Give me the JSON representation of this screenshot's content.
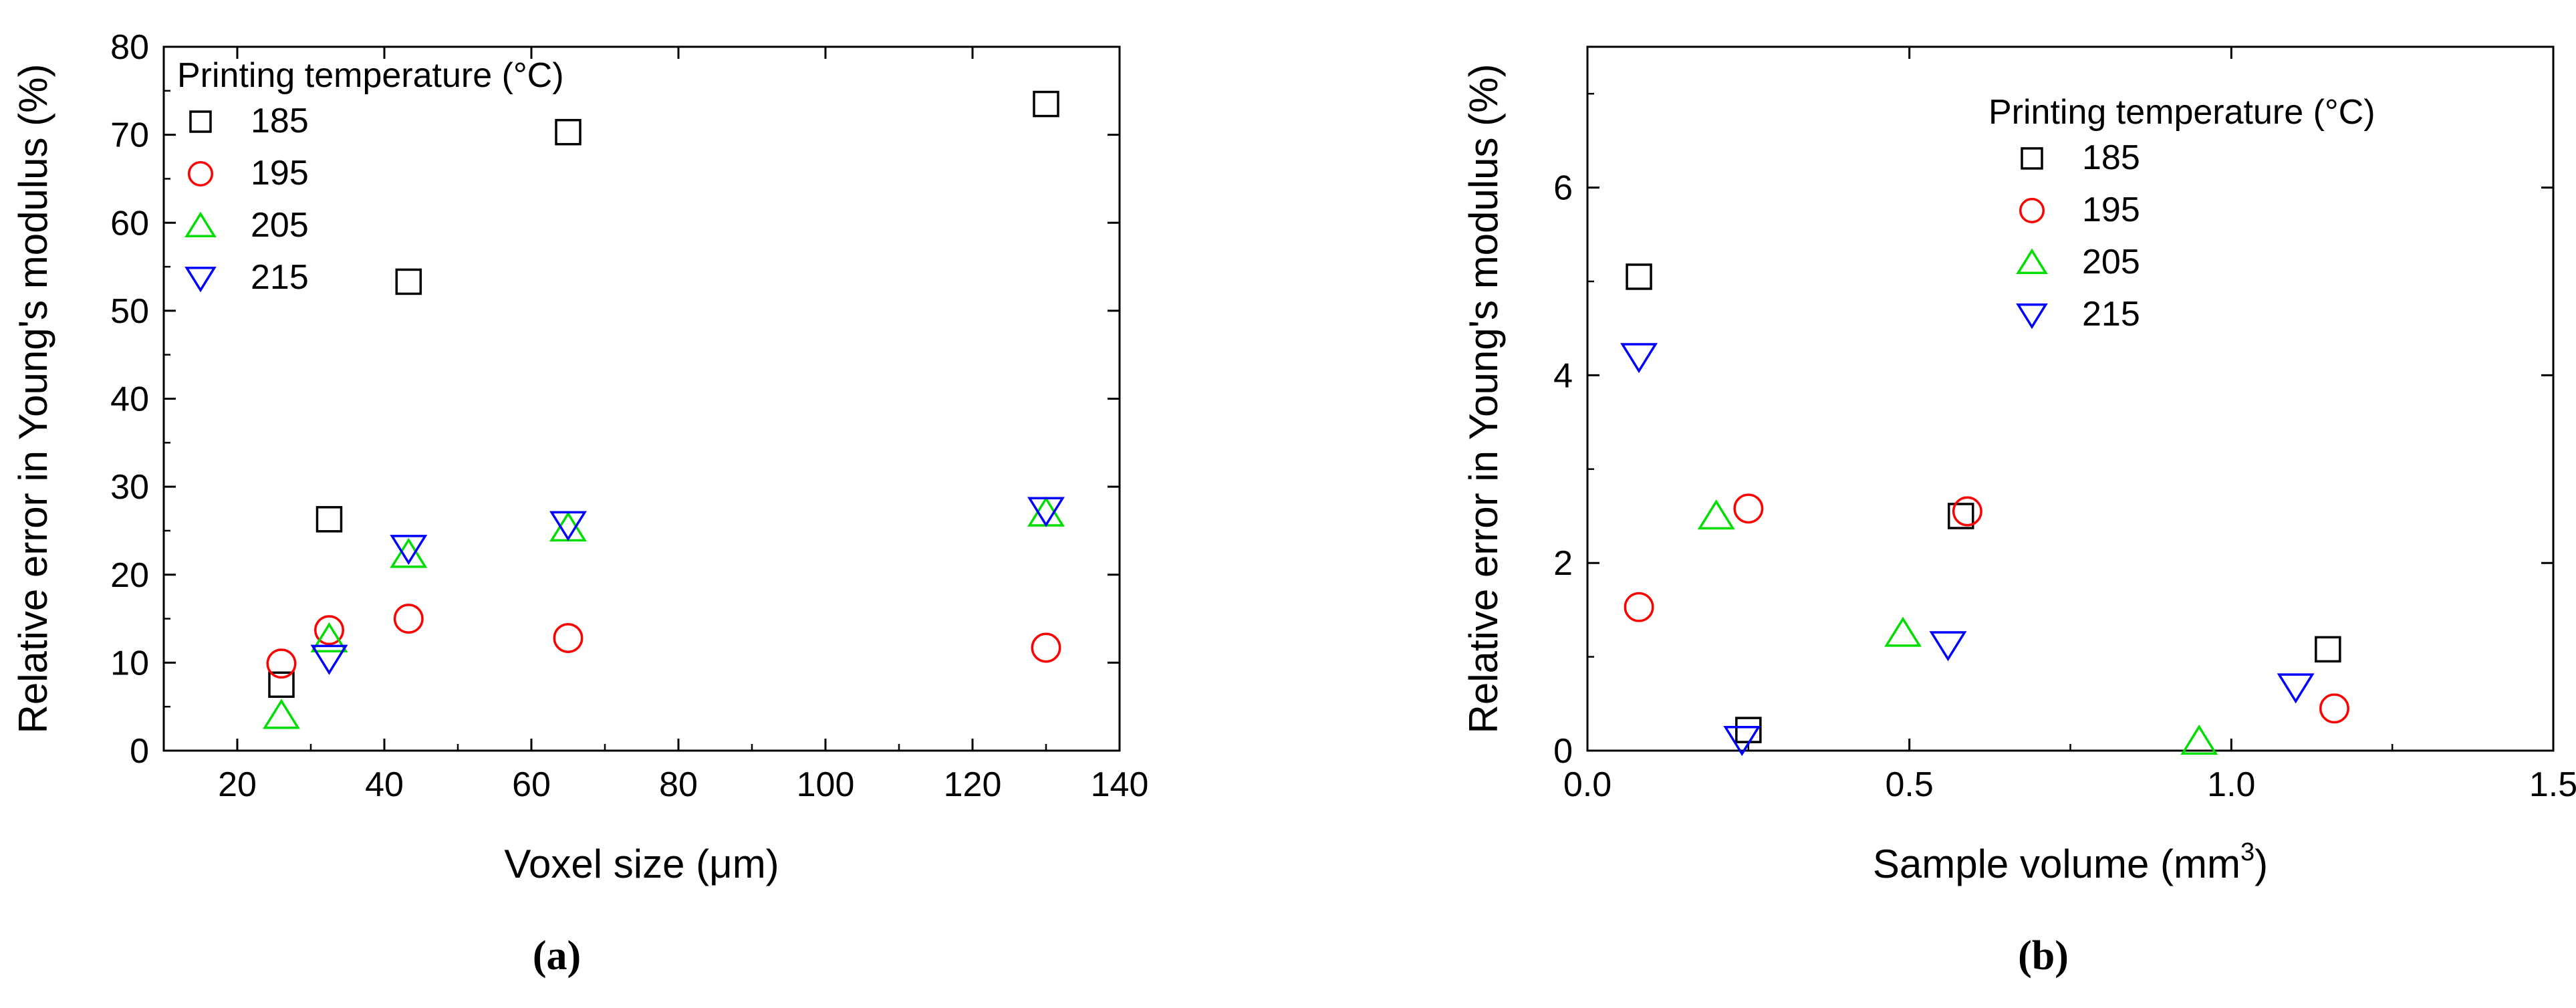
{
  "chart_data": [
    {
      "panel_label": "(a)",
      "type": "scatter",
      "xlabel": "Voxel size (μm)",
      "ylabel": "Relative error in Young's modulus (%)",
      "xlim": [
        10,
        140
      ],
      "ylim": [
        0,
        80
      ],
      "xticks": [
        "20",
        "40",
        "60",
        "80",
        "100",
        "120",
        "140"
      ],
      "yticks": [
        "0",
        "10",
        "20",
        "30",
        "40",
        "50",
        "60",
        "70",
        "80"
      ],
      "legend_title": "Printing temperature (°C)",
      "legend_position": "top-left",
      "series": [
        {
          "name": "185",
          "marker": "square",
          "color": "#000000",
          "points": [
            [
              26,
              7.5
            ],
            [
              32.5,
              26.3
            ],
            [
              43.3,
              53.3
            ],
            [
              65,
              70.3
            ],
            [
              130,
              73.5
            ]
          ]
        },
        {
          "name": "195",
          "marker": "circle",
          "color": "#ff0000",
          "points": [
            [
              26,
              9.9
            ],
            [
              32.5,
              13.7
            ],
            [
              43.3,
              15.0
            ],
            [
              65,
              12.8
            ],
            [
              130,
              11.7
            ]
          ]
        },
        {
          "name": "205",
          "marker": "triangle-up",
          "color": "#00dd00",
          "points": [
            [
              26,
              4.0
            ],
            [
              32.5,
              12.7
            ],
            [
              43.3,
              22.3
            ],
            [
              65,
              25.3
            ],
            [
              130,
              27.0
            ]
          ]
        },
        {
          "name": "215",
          "marker": "triangle-down",
          "color": "#0000ff",
          "points": [
            [
              32.5,
              10.5
            ],
            [
              43.3,
              23.0
            ],
            [
              65,
              25.7
            ],
            [
              130,
              27.3
            ]
          ]
        }
      ]
    },
    {
      "panel_label": "(b)",
      "type": "scatter",
      "xlabel": "Sample volume (mm",
      "xlabel_sup": "3",
      "xlabel_end": ")",
      "ylabel": "Relative error in Young's modulus (%)",
      "xlim": [
        0.0,
        1.5
      ],
      "ylim": [
        0,
        7.5
      ],
      "xticks": [
        "0.0",
        "0.5",
        "1.0",
        "1.5"
      ],
      "yticks": [
        "0",
        "2",
        "4",
        "6"
      ],
      "legend_title": "Printing temperature (°C)",
      "legend_position": "top-right",
      "series": [
        {
          "name": "185",
          "marker": "square",
          "color": "#000000",
          "points": [
            [
              0.08,
              5.05
            ],
            [
              0.25,
              0.22
            ],
            [
              0.58,
              2.5
            ],
            [
              1.15,
              1.08
            ]
          ]
        },
        {
          "name": "195",
          "marker": "circle",
          "color": "#ff0000",
          "points": [
            [
              0.08,
              1.53
            ],
            [
              0.25,
              2.58
            ],
            [
              0.59,
              2.55
            ],
            [
              1.16,
              0.45
            ]
          ]
        },
        {
          "name": "205",
          "marker": "triangle-up",
          "color": "#00dd00",
          "points": [
            [
              0.2,
              2.5
            ],
            [
              0.49,
              1.25
            ],
            [
              0.95,
              0.1
            ]
          ]
        },
        {
          "name": "215",
          "marker": "triangle-down",
          "color": "#0000ff",
          "points": [
            [
              0.08,
              4.2
            ],
            [
              0.24,
              0.12
            ],
            [
              0.56,
              1.13
            ],
            [
              1.1,
              0.68
            ]
          ]
        }
      ]
    }
  ]
}
